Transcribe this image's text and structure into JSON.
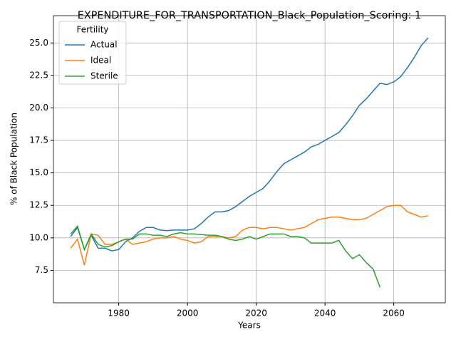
{
  "chart_data": {
    "type": "line",
    "title": "EXPENDITURE_FOR_TRANSPORTATION_Black_Population_Scoring: 1",
    "xlabel": "Years",
    "ylabel": "% of Black Population",
    "legend_title": "Fertility",
    "legend": "upper left",
    "grid": true,
    "x": [
      1966,
      1968,
      1970,
      1972,
      1974,
      1976,
      1978,
      1980,
      1982,
      1984,
      1986,
      1988,
      1990,
      1992,
      1994,
      1996,
      1998,
      2000,
      2002,
      2004,
      2006,
      2008,
      2010,
      2012,
      2014,
      2016,
      2018,
      2020,
      2022,
      2024,
      2026,
      2028,
      2030,
      2032,
      2034,
      2036,
      2038,
      2040,
      2042,
      2044,
      2046,
      2048,
      2050,
      2052,
      2054,
      2056,
      2058,
      2060,
      2062,
      2064,
      2066,
      2068,
      2070
    ],
    "series": [
      {
        "name": "Actual",
        "color": "#1f77b4",
        "values": [
          10.1,
          10.8,
          9.1,
          10.2,
          9.2,
          9.2,
          9.0,
          9.1,
          9.7,
          10.0,
          10.5,
          10.8,
          10.8,
          10.6,
          10.55,
          10.6,
          10.6,
          10.6,
          10.7,
          11.1,
          11.6,
          12.0,
          12.0,
          12.1,
          12.4,
          12.8,
          13.2,
          13.5,
          13.8,
          14.4,
          15.1,
          15.7,
          16.0,
          16.3,
          16.6,
          17.0,
          17.2,
          17.5,
          17.8,
          18.1,
          18.7,
          19.4,
          20.2,
          20.7,
          21.3,
          21.9,
          21.8,
          22.0,
          22.4,
          23.1,
          23.9,
          24.8,
          25.4
        ]
      },
      {
        "name": "Ideal",
        "color": "#ff7f0e",
        "values": [
          9.2,
          9.9,
          7.9,
          10.3,
          10.2,
          9.5,
          9.5,
          9.7,
          9.9,
          9.5,
          9.6,
          9.7,
          9.9,
          10.0,
          10.0,
          10.1,
          9.9,
          9.8,
          9.6,
          9.7,
          10.1,
          10.1,
          10.1,
          10.0,
          10.1,
          10.6,
          10.8,
          10.8,
          10.7,
          10.8,
          10.8,
          10.7,
          10.6,
          10.7,
          10.8,
          11.1,
          11.4,
          11.5,
          11.6,
          11.6,
          11.5,
          11.4,
          11.4,
          11.5,
          11.8,
          12.1,
          12.4,
          12.5,
          12.5,
          12.0,
          11.8,
          11.6,
          11.7
        ]
      },
      {
        "name": "Sterile",
        "color": "#2ca02c",
        "values": [
          10.3,
          10.9,
          9.1,
          10.3,
          9.5,
          9.3,
          9.4,
          9.7,
          9.9,
          9.9,
          10.3,
          10.3,
          10.2,
          10.2,
          10.1,
          10.3,
          10.4,
          10.3,
          10.3,
          10.25,
          10.2,
          10.2,
          10.1,
          9.9,
          9.8,
          9.9,
          10.1,
          9.9,
          10.1,
          10.3,
          10.3,
          10.3,
          10.1,
          10.1,
          10.0,
          9.6,
          9.6,
          9.6,
          9.6,
          9.8,
          9.0,
          8.4,
          8.7,
          8.1,
          7.6,
          6.2,
          null,
          null,
          null,
          null,
          null,
          null,
          null
        ]
      }
    ],
    "xlim": [
      1961,
      2075
    ],
    "xticks": [
      1980,
      2000,
      2020,
      2040,
      2060
    ],
    "ylim": [
      5,
      27.1
    ],
    "yticks": [
      7.5,
      {
        "value": 10,
        "label": "10.0"
      },
      12.5,
      {
        "value": 15,
        "label": "15.0"
      },
      17.5,
      {
        "value": 20,
        "label": "20.0"
      },
      22.5,
      {
        "value": 25,
        "label": "25.0"
      }
    ]
  }
}
